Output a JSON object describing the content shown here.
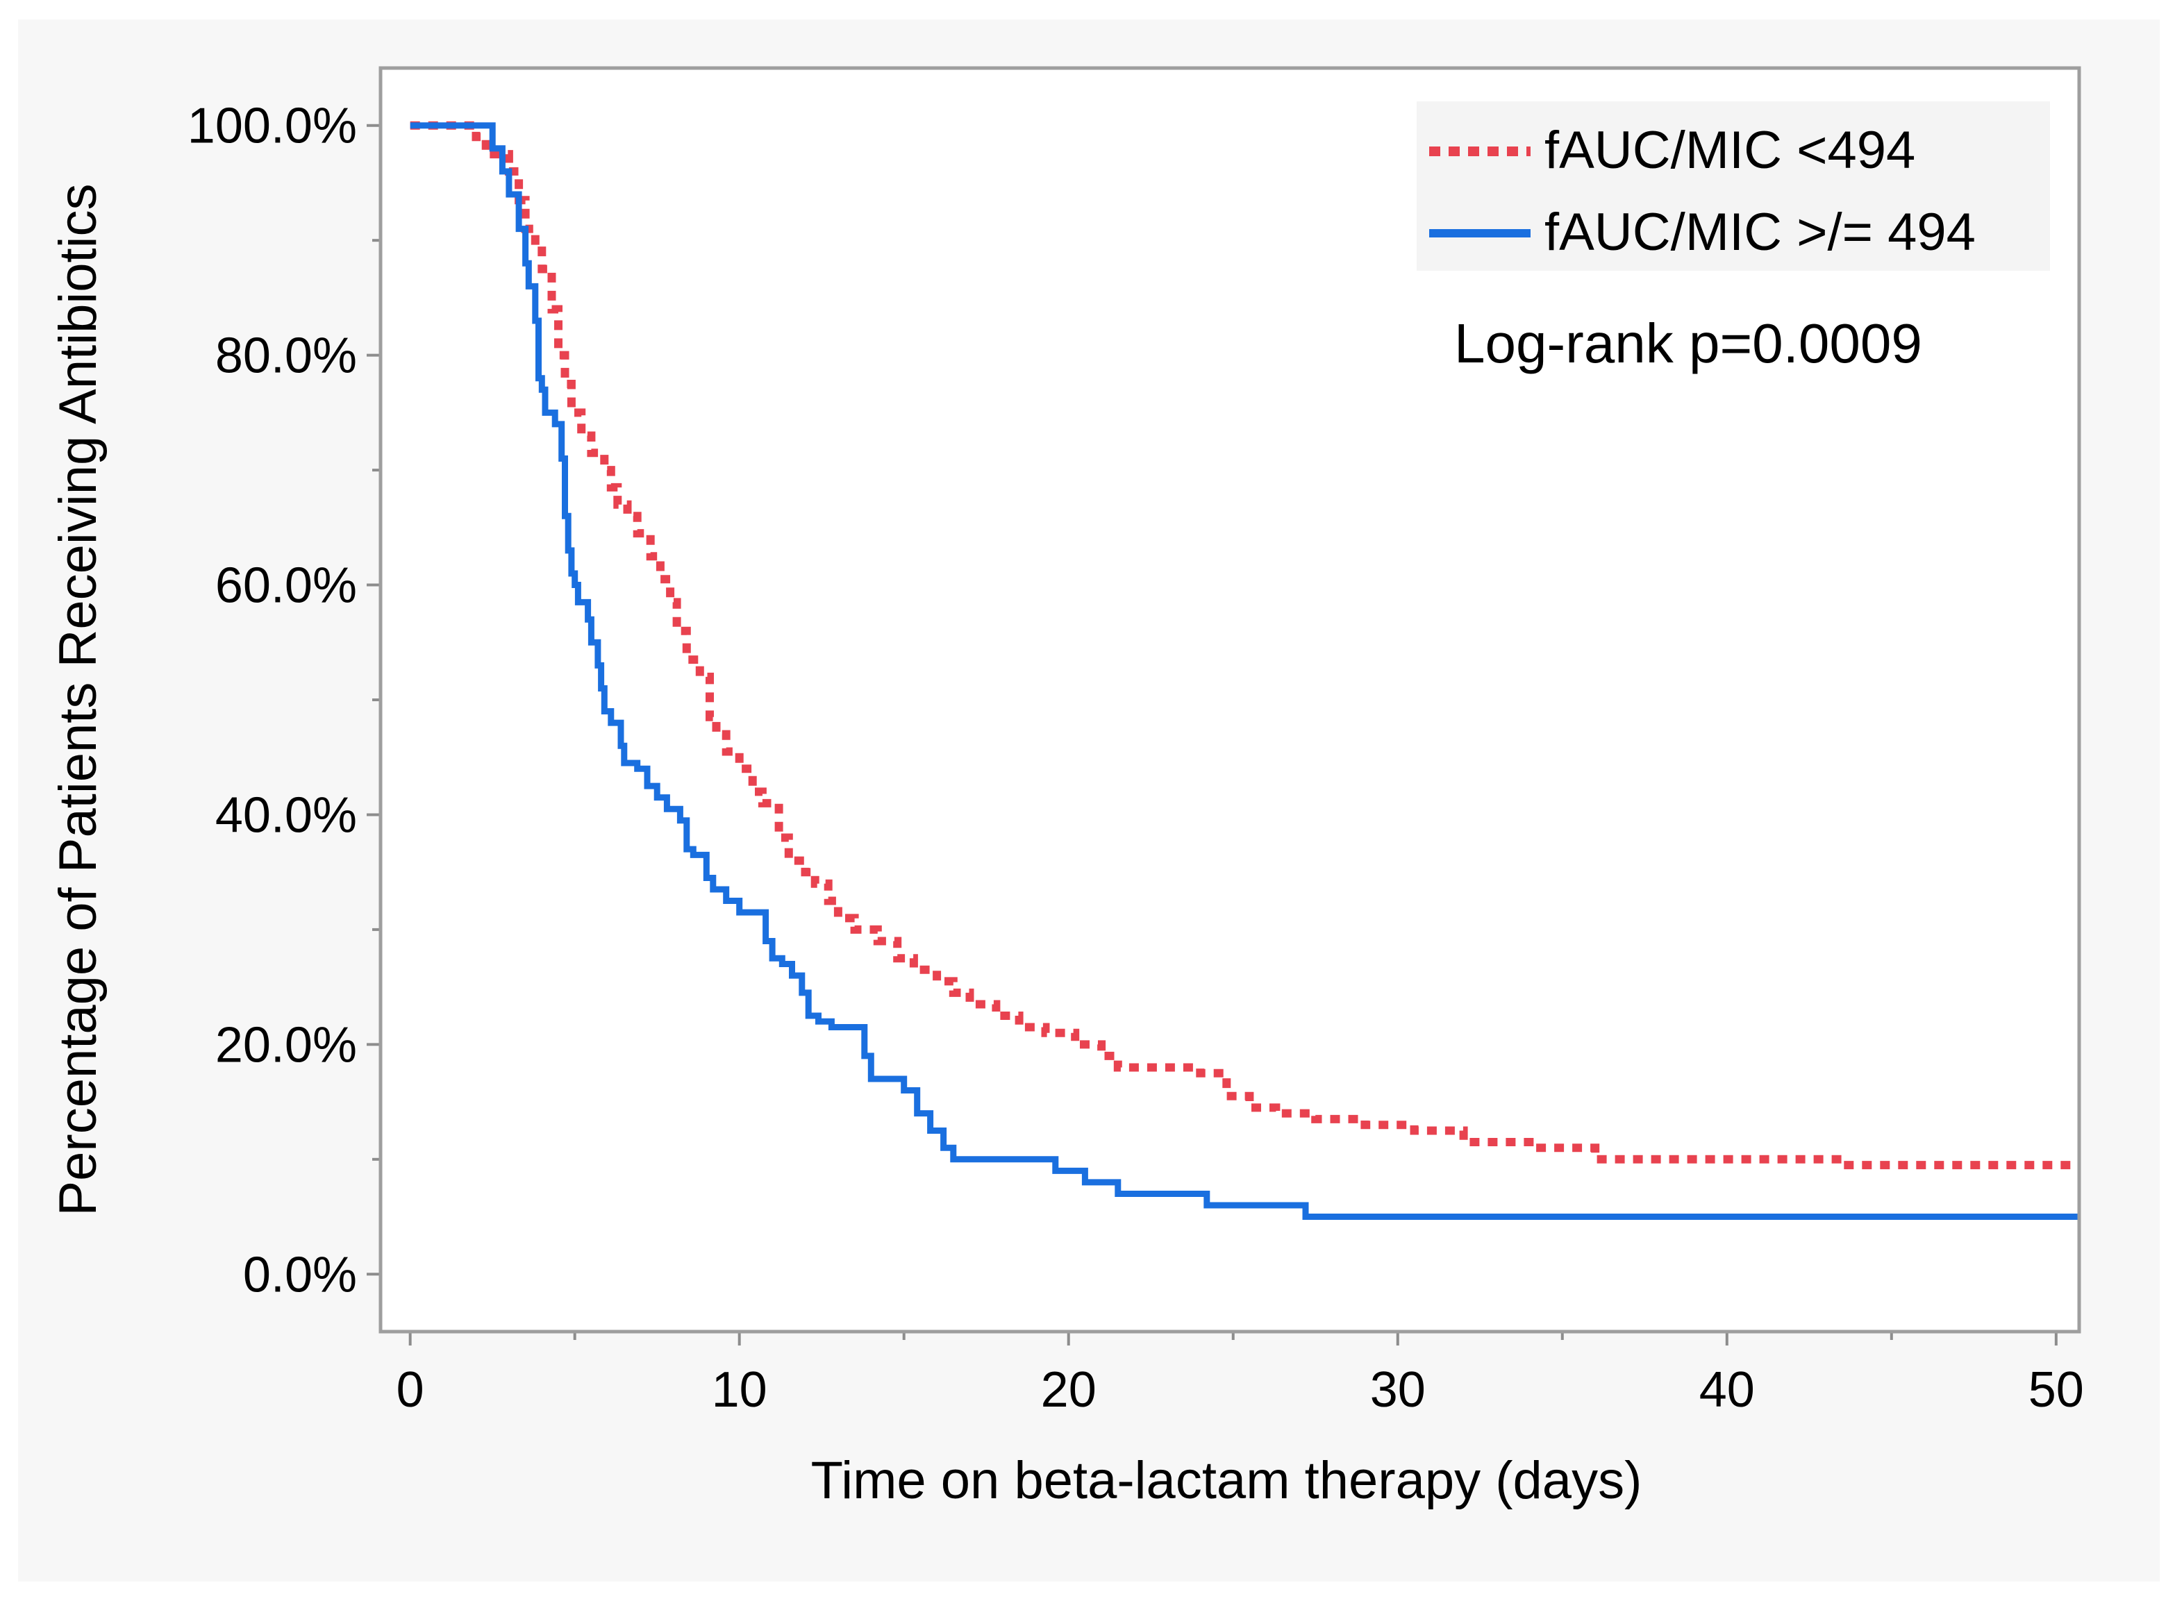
{
  "chart_data": {
    "type": "line",
    "subtype": "kaplan-meier step curve",
    "title": "",
    "xlabel": "Time on beta-lactam therapy (days)",
    "ylabel": "Percentage of Patients Receiving Antibiotics",
    "xlim": [
      -0.9,
      50.7
    ],
    "ylim": [
      -5,
      105
    ],
    "x_ticks": [
      0,
      10,
      20,
      30,
      40,
      50
    ],
    "x_tick_labels": [
      "0",
      "10",
      "20",
      "30",
      "40",
      "50"
    ],
    "x_minor_ticks": [
      5,
      15,
      25,
      35,
      45
    ],
    "y_ticks": [
      0,
      20,
      40,
      60,
      80,
      100
    ],
    "y_tick_labels": [
      "0.0%",
      "20.0%",
      "40.0%",
      "60.0%",
      "80.0%",
      "100.0%"
    ],
    "y_minor_ticks": [
      10,
      30,
      50,
      70,
      90
    ],
    "grid": false,
    "legend_position": "top-right",
    "annotation": "Log-rank p=0.0009",
    "series": [
      {
        "name": "fAUC/MIC <494",
        "color": "#E8424F",
        "style": "dotted",
        "points": [
          [
            0,
            100
          ],
          [
            2.0,
            100
          ],
          [
            2.0,
            99
          ],
          [
            2.3,
            99
          ],
          [
            2.3,
            97.5
          ],
          [
            3.0,
            97.5
          ],
          [
            3.0,
            96
          ],
          [
            3.3,
            96
          ],
          [
            3.3,
            93.5
          ],
          [
            3.5,
            93.5
          ],
          [
            3.5,
            91
          ],
          [
            3.8,
            91
          ],
          [
            3.8,
            89.5
          ],
          [
            4.0,
            89.5
          ],
          [
            4.0,
            87.5
          ],
          [
            4.3,
            87.5
          ],
          [
            4.3,
            84
          ],
          [
            4.5,
            84
          ],
          [
            4.5,
            80
          ],
          [
            4.7,
            80
          ],
          [
            4.7,
            77.5
          ],
          [
            4.9,
            77.5
          ],
          [
            4.9,
            75
          ],
          [
            5.2,
            75
          ],
          [
            5.2,
            73
          ],
          [
            5.5,
            73
          ],
          [
            5.5,
            71.5
          ],
          [
            5.9,
            71.5
          ],
          [
            5.9,
            70
          ],
          [
            6.1,
            70
          ],
          [
            6.1,
            68.5
          ],
          [
            6.3,
            68.5
          ],
          [
            6.3,
            67
          ],
          [
            6.6,
            67
          ],
          [
            6.6,
            66
          ],
          [
            6.9,
            66
          ],
          [
            6.9,
            64.5
          ],
          [
            7.3,
            64.5
          ],
          [
            7.3,
            62.5
          ],
          [
            7.6,
            62.5
          ],
          [
            7.6,
            60.5
          ],
          [
            7.9,
            60.5
          ],
          [
            7.9,
            58.5
          ],
          [
            8.1,
            58.5
          ],
          [
            8.1,
            56
          ],
          [
            8.4,
            56
          ],
          [
            8.4,
            53.5
          ],
          [
            8.8,
            53.5
          ],
          [
            8.8,
            52
          ],
          [
            9.1,
            52
          ],
          [
            9.1,
            48.5
          ],
          [
            9.3,
            48.5
          ],
          [
            9.3,
            47
          ],
          [
            9.6,
            47
          ],
          [
            9.6,
            45.5
          ],
          [
            10.0,
            45.5
          ],
          [
            10.0,
            44
          ],
          [
            10.4,
            44
          ],
          [
            10.4,
            42
          ],
          [
            10.7,
            42
          ],
          [
            10.7,
            41
          ],
          [
            11.2,
            41
          ],
          [
            11.2,
            38
          ],
          [
            11.5,
            38
          ],
          [
            11.5,
            36
          ],
          [
            12.0,
            36
          ],
          [
            12.0,
            35
          ],
          [
            12.3,
            35
          ],
          [
            12.3,
            34
          ],
          [
            12.7,
            34
          ],
          [
            12.7,
            32.5
          ],
          [
            13.0,
            32.5
          ],
          [
            13.0,
            31
          ],
          [
            13.5,
            31
          ],
          [
            13.5,
            30
          ],
          [
            14.2,
            30
          ],
          [
            14.2,
            29
          ],
          [
            14.8,
            29
          ],
          [
            14.8,
            27.5
          ],
          [
            15.3,
            27.5
          ],
          [
            15.3,
            26.5
          ],
          [
            16.0,
            26.5
          ],
          [
            16.0,
            25.5
          ],
          [
            16.5,
            25.5
          ],
          [
            16.5,
            24.5
          ],
          [
            17.0,
            24.5
          ],
          [
            17.0,
            23.5
          ],
          [
            17.8,
            23.5
          ],
          [
            17.8,
            22.5
          ],
          [
            18.5,
            22.5
          ],
          [
            18.5,
            21.5
          ],
          [
            19.3,
            21.5
          ],
          [
            19.3,
            21
          ],
          [
            20.2,
            21
          ],
          [
            20.2,
            20
          ],
          [
            21.0,
            20
          ],
          [
            21.0,
            19
          ],
          [
            21.5,
            19
          ],
          [
            21.5,
            18
          ],
          [
            24.0,
            18
          ],
          [
            24.0,
            17.5
          ],
          [
            24.8,
            17.5
          ],
          [
            24.8,
            15.5
          ],
          [
            25.5,
            15.5
          ],
          [
            25.5,
            14.5
          ],
          [
            26.3,
            14.5
          ],
          [
            26.3,
            14
          ],
          [
            27.5,
            14
          ],
          [
            27.5,
            13.5
          ],
          [
            29.0,
            13.5
          ],
          [
            29.0,
            13
          ],
          [
            30.5,
            13
          ],
          [
            30.5,
            12.5
          ],
          [
            32.0,
            12.5
          ],
          [
            32.0,
            11.5
          ],
          [
            34.0,
            11.5
          ],
          [
            34.0,
            11
          ],
          [
            36.0,
            11
          ],
          [
            36.0,
            10
          ],
          [
            43.5,
            10
          ],
          [
            43.5,
            9.5
          ],
          [
            50.7,
            9.5
          ]
        ]
      },
      {
        "name": "fAUC/MIC >/= 494",
        "color": "#1A6FDF",
        "style": "solid",
        "points": [
          [
            0,
            100
          ],
          [
            2.5,
            100
          ],
          [
            2.5,
            98
          ],
          [
            2.8,
            98
          ],
          [
            2.8,
            96
          ],
          [
            3.0,
            96
          ],
          [
            3.0,
            94
          ],
          [
            3.3,
            94
          ],
          [
            3.3,
            91
          ],
          [
            3.5,
            91
          ],
          [
            3.5,
            88
          ],
          [
            3.6,
            88
          ],
          [
            3.6,
            86
          ],
          [
            3.8,
            86
          ],
          [
            3.8,
            83
          ],
          [
            3.9,
            83
          ],
          [
            3.9,
            78
          ],
          [
            4.0,
            78
          ],
          [
            4.0,
            77
          ],
          [
            4.1,
            77
          ],
          [
            4.1,
            75
          ],
          [
            4.4,
            75
          ],
          [
            4.4,
            74
          ],
          [
            4.6,
            74
          ],
          [
            4.6,
            71
          ],
          [
            4.7,
            71
          ],
          [
            4.7,
            66
          ],
          [
            4.8,
            66
          ],
          [
            4.8,
            63
          ],
          [
            4.9,
            63
          ],
          [
            4.9,
            61
          ],
          [
            5.0,
            61
          ],
          [
            5.0,
            60
          ],
          [
            5.1,
            60
          ],
          [
            5.1,
            58.5
          ],
          [
            5.4,
            58.5
          ],
          [
            5.4,
            57
          ],
          [
            5.5,
            57
          ],
          [
            5.5,
            55
          ],
          [
            5.7,
            55
          ],
          [
            5.7,
            53
          ],
          [
            5.8,
            53
          ],
          [
            5.8,
            51
          ],
          [
            5.9,
            51
          ],
          [
            5.9,
            49
          ],
          [
            6.1,
            49
          ],
          [
            6.1,
            48
          ],
          [
            6.4,
            48
          ],
          [
            6.4,
            46
          ],
          [
            6.5,
            46
          ],
          [
            6.5,
            44.5
          ],
          [
            6.9,
            44.5
          ],
          [
            6.9,
            44
          ],
          [
            7.2,
            44
          ],
          [
            7.2,
            42.5
          ],
          [
            7.5,
            42.5
          ],
          [
            7.5,
            41.5
          ],
          [
            7.8,
            41.5
          ],
          [
            7.8,
            40.5
          ],
          [
            8.2,
            40.5
          ],
          [
            8.2,
            39.5
          ],
          [
            8.4,
            39.5
          ],
          [
            8.4,
            37
          ],
          [
            8.6,
            37
          ],
          [
            8.6,
            36.5
          ],
          [
            9.0,
            36.5
          ],
          [
            9.0,
            34.5
          ],
          [
            9.2,
            34.5
          ],
          [
            9.2,
            33.5
          ],
          [
            9.6,
            33.5
          ],
          [
            9.6,
            32.5
          ],
          [
            10.0,
            32.5
          ],
          [
            10.0,
            31.5
          ],
          [
            10.8,
            31.5
          ],
          [
            10.8,
            29
          ],
          [
            11.0,
            29
          ],
          [
            11.0,
            27.5
          ],
          [
            11.3,
            27.5
          ],
          [
            11.3,
            27
          ],
          [
            11.6,
            27
          ],
          [
            11.6,
            26
          ],
          [
            11.9,
            26
          ],
          [
            11.9,
            24.5
          ],
          [
            12.1,
            24.5
          ],
          [
            12.1,
            22.5
          ],
          [
            12.4,
            22.5
          ],
          [
            12.4,
            22
          ],
          [
            12.8,
            22
          ],
          [
            12.8,
            21.5
          ],
          [
            13.8,
            21.5
          ],
          [
            13.8,
            19
          ],
          [
            14.0,
            19
          ],
          [
            14.0,
            17
          ],
          [
            15.0,
            17
          ],
          [
            15.0,
            16
          ],
          [
            15.4,
            16
          ],
          [
            15.4,
            14
          ],
          [
            15.8,
            14
          ],
          [
            15.8,
            12.5
          ],
          [
            16.2,
            12.5
          ],
          [
            16.2,
            11
          ],
          [
            16.5,
            11
          ],
          [
            16.5,
            10
          ],
          [
            19.6,
            10
          ],
          [
            19.6,
            9
          ],
          [
            20.5,
            9
          ],
          [
            20.5,
            8
          ],
          [
            21.5,
            8
          ],
          [
            21.5,
            7
          ],
          [
            24.2,
            7
          ],
          [
            24.2,
            6
          ],
          [
            27.2,
            6
          ],
          [
            27.2,
            5
          ],
          [
            50.7,
            5
          ]
        ]
      }
    ]
  }
}
